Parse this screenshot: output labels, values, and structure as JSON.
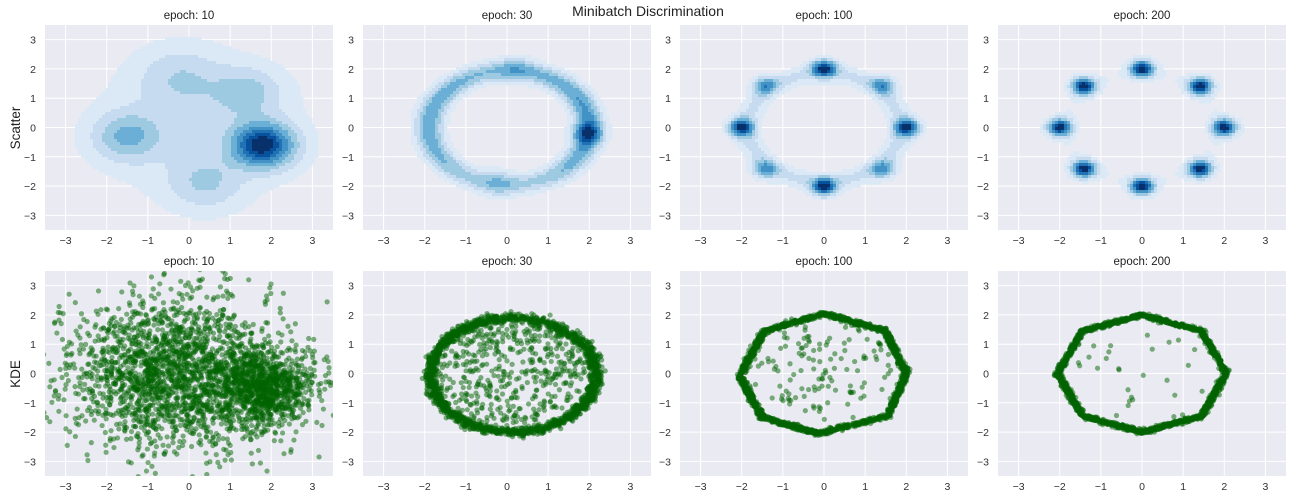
{
  "figure": {
    "suptitle": "Minibatch Discrimination",
    "background_color": "#eaeaf2",
    "grid_color": "#ffffff",
    "kde_colormap": [
      "#dbe9f6",
      "#c6dbef",
      "#9ecae1",
      "#6baed6",
      "#4292c6",
      "#2171b5",
      "#08519c",
      "#08306b"
    ],
    "point_color": "#006400",
    "row_labels": [
      "Scatter",
      "KDE"
    ]
  },
  "chart_data": [
    {
      "type": "kde",
      "row": 0,
      "col": 0,
      "title": "epoch:  10",
      "xlim": [
        -3.5,
        3.5
      ],
      "ylim": [
        -3.5,
        3.5
      ],
      "grid": true,
      "xticks": [
        -3,
        -2,
        -1,
        0,
        1,
        2,
        3
      ],
      "tick_labels": [
        "−3",
        "−2",
        "−1",
        "0",
        "1",
        "2",
        "3"
      ],
      "components": [
        {
          "kind": "gauss",
          "mean": [
            1.8,
            -0.6
          ],
          "std": 0.5,
          "weight": 0.3
        },
        {
          "kind": "gauss",
          "mean": [
            -1.5,
            -0.3
          ],
          "std": 0.55,
          "weight": 0.14
        },
        {
          "kind": "gauss",
          "mean": [
            0.4,
            -1.9
          ],
          "std": 0.6,
          "weight": 0.1
        },
        {
          "kind": "gauss",
          "mean": [
            -0.2,
            1.7
          ],
          "std": 0.7,
          "weight": 0.12
        },
        {
          "kind": "gauss",
          "mean": [
            1.4,
            1.2
          ],
          "std": 0.55,
          "weight": 0.1
        },
        {
          "kind": "gauss",
          "mean": [
            0.2,
            0.0
          ],
          "std": 1.7,
          "weight": 0.5
        }
      ]
    },
    {
      "type": "kde",
      "row": 0,
      "col": 1,
      "title": "epoch:  30",
      "xlim": [
        -3.5,
        3.5
      ],
      "ylim": [
        -3.5,
        3.5
      ],
      "grid": true,
      "xticks": [
        -3,
        -2,
        -1,
        0,
        1,
        2,
        3
      ],
      "tick_labels": [
        "−3",
        "−2",
        "−1",
        "0",
        "1",
        "2",
        "3"
      ],
      "components": [
        {
          "kind": "ellipse",
          "center": [
            0.05,
            0.0
          ],
          "radii": [
            1.95,
            1.95
          ],
          "std": 0.22,
          "weight": 1.0
        },
        {
          "kind": "gauss",
          "mean": [
            1.95,
            -0.2
          ],
          "std": 0.25,
          "weight": 0.12
        },
        {
          "kind": "gauss",
          "mean": [
            0.2,
            2.0
          ],
          "std": 0.3,
          "weight": 0.06
        },
        {
          "kind": "gauss",
          "mean": [
            -0.2,
            -1.9
          ],
          "std": 0.3,
          "weight": 0.07
        }
      ]
    },
    {
      "type": "kde",
      "row": 0,
      "col": 2,
      "title": "epoch: 100",
      "xlim": [
        -3.5,
        3.5
      ],
      "ylim": [
        -3.5,
        3.5
      ],
      "grid": true,
      "xticks": [
        -3,
        -2,
        -1,
        0,
        1,
        2,
        3
      ],
      "tick_labels": [
        "−3",
        "−2",
        "−1",
        "0",
        "1",
        "2",
        "3"
      ],
      "modes": [
        [
          0,
          2
        ],
        [
          1.41,
          1.41
        ],
        [
          2,
          0
        ],
        [
          1.41,
          -1.41
        ],
        [
          0,
          -2
        ],
        [
          -1.41,
          -1.41
        ],
        [
          -2,
          0
        ],
        [
          -1.41,
          1.41
        ]
      ],
      "mode_weights": [
        1.0,
        0.45,
        1.0,
        0.45,
        1.0,
        0.45,
        1.0,
        0.45
      ],
      "mode_std": 0.2,
      "edge_weight": 0.25
    },
    {
      "type": "kde",
      "row": 0,
      "col": 3,
      "title": "epoch: 200",
      "xlim": [
        -3.5,
        3.5
      ],
      "ylim": [
        -3.5,
        3.5
      ],
      "grid": true,
      "xticks": [
        -3,
        -2,
        -1,
        0,
        1,
        2,
        3
      ],
      "tick_labels": [
        "−3",
        "−2",
        "−1",
        "0",
        "1",
        "2",
        "3"
      ],
      "modes": [
        [
          0,
          2
        ],
        [
          1.41,
          1.41
        ],
        [
          2,
          0
        ],
        [
          1.41,
          -1.41
        ],
        [
          0,
          -2
        ],
        [
          -1.41,
          -1.41
        ],
        [
          -2,
          0
        ],
        [
          -1.41,
          1.41
        ]
      ],
      "mode_weights": [
        1,
        1,
        1,
        1,
        1,
        1,
        1,
        1
      ],
      "mode_std": 0.19,
      "edge_weight": 0.05
    },
    {
      "type": "scatter",
      "row": 1,
      "col": 0,
      "title": "epoch:  10",
      "xlim": [
        -3.5,
        3.5
      ],
      "ylim": [
        -3.5,
        3.5
      ],
      "grid": true,
      "xticks": [
        -3,
        -2,
        -1,
        0,
        1,
        2,
        3
      ],
      "tick_labels": [
        "−3",
        "−2",
        "−1",
        "0",
        "1",
        "2",
        "3"
      ],
      "n_points": 3000,
      "components": [
        {
          "kind": "gauss",
          "mean": [
            1.8,
            -0.5
          ],
          "std": 0.6,
          "weight": 0.3
        },
        {
          "kind": "gauss",
          "mean": [
            -0.3,
            0.0
          ],
          "std": 1.35,
          "weight": 0.7
        }
      ]
    },
    {
      "type": "scatter",
      "row": 1,
      "col": 1,
      "title": "epoch:  30",
      "xlim": [
        -3.5,
        3.5
      ],
      "ylim": [
        -3.5,
        3.5
      ],
      "grid": true,
      "xticks": [
        -3,
        -2,
        -1,
        0,
        1,
        2,
        3
      ],
      "tick_labels": [
        "−3",
        "−2",
        "−1",
        "0",
        "1",
        "2",
        "3"
      ],
      "n_points": 2200,
      "components": [
        {
          "kind": "ellipse",
          "center": [
            0.1,
            -0.05
          ],
          "radii": [
            1.95,
            1.95
          ],
          "std": 0.08,
          "weight": 0.8
        },
        {
          "kind": "disk",
          "center": [
            0.1,
            0.0
          ],
          "radius": 1.8,
          "weight": 0.2
        }
      ]
    },
    {
      "type": "scatter",
      "row": 1,
      "col": 2,
      "title": "epoch: 100",
      "xlim": [
        -3.5,
        3.5
      ],
      "ylim": [
        -3.5,
        3.5
      ],
      "grid": true,
      "xticks": [
        -3,
        -2,
        -1,
        0,
        1,
        2,
        3
      ],
      "tick_labels": [
        "−3",
        "−2",
        "−1",
        "0",
        "1",
        "2",
        "3"
      ],
      "n_points": 2000,
      "vertices": [
        [
          0,
          2.05
        ],
        [
          1.5,
          1.45
        ],
        [
          2.0,
          0
        ],
        [
          1.55,
          -1.45
        ],
        [
          -0.15,
          -2.05
        ],
        [
          -1.5,
          -1.5
        ],
        [
          -2.05,
          -0.1
        ],
        [
          -1.45,
          1.45
        ]
      ],
      "edge_std": 0.04,
      "interior_fraction": 0.06
    },
    {
      "type": "scatter",
      "row": 1,
      "col": 3,
      "title": "epoch: 200",
      "xlim": [
        -3.5,
        3.5
      ],
      "ylim": [
        -3.5,
        3.5
      ],
      "grid": true,
      "xticks": [
        -3,
        -2,
        -1,
        0,
        1,
        2,
        3
      ],
      "tick_labels": [
        "−3",
        "−2",
        "−1",
        "0",
        "1",
        "2",
        "3"
      ],
      "n_points": 2000,
      "vertices": [
        [
          0,
          2.0
        ],
        [
          1.45,
          1.45
        ],
        [
          2.05,
          0
        ],
        [
          1.45,
          -1.45
        ],
        [
          0,
          -2.0
        ],
        [
          -1.45,
          -1.45
        ],
        [
          -2.05,
          0
        ],
        [
          -1.45,
          1.45
        ]
      ],
      "edge_std": 0.035,
      "interior_fraction": 0.015
    }
  ]
}
